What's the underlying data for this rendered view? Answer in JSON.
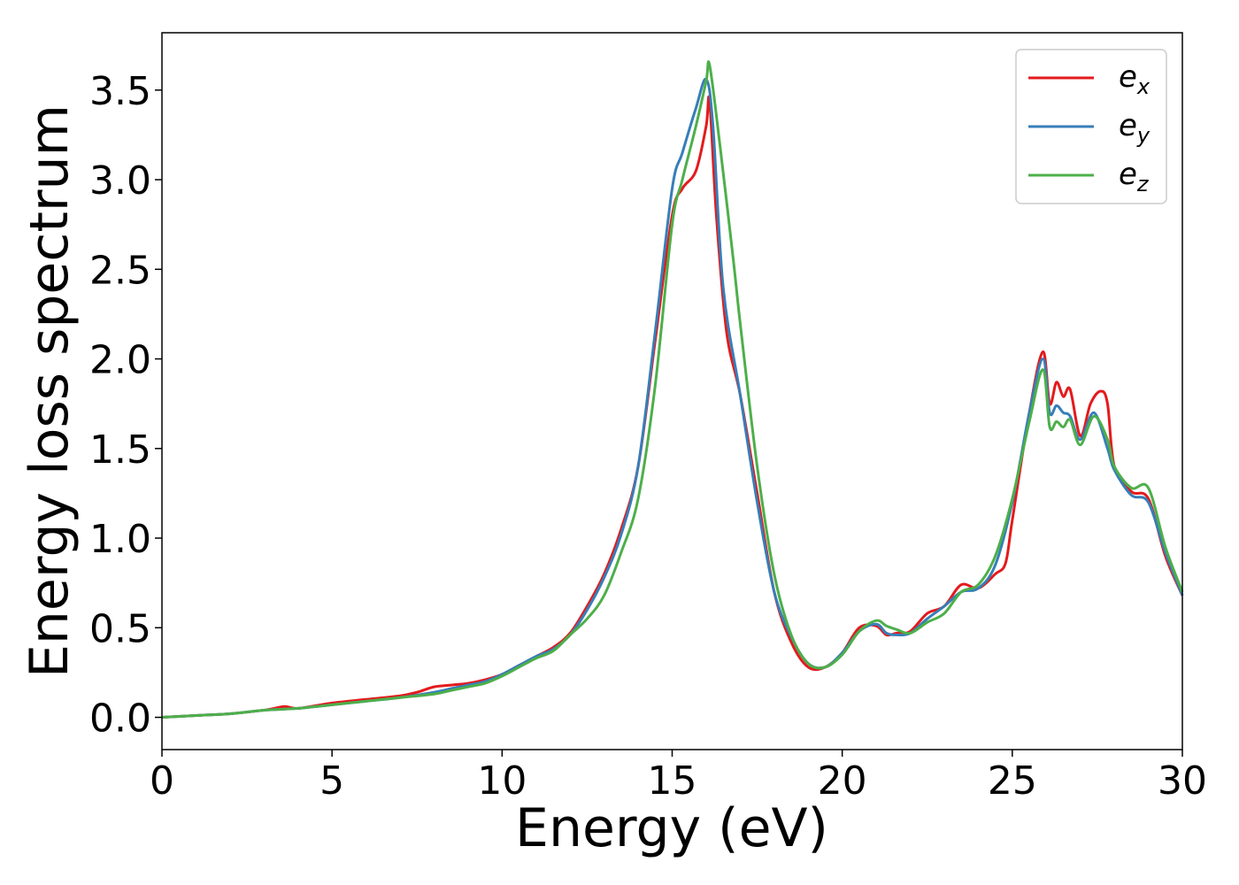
{
  "chart_data": {
    "type": "line",
    "xlabel": "Energy (eV)",
    "ylabel": "Energy loss spectrum",
    "xlim": [
      0,
      30
    ],
    "ylim": [
      -0.18,
      3.82
    ],
    "xticks": [
      0,
      5,
      10,
      15,
      20,
      25,
      30
    ],
    "xtick_labels": [
      "0",
      "5",
      "10",
      "15",
      "20",
      "25",
      "30"
    ],
    "yticks": [
      0.0,
      0.5,
      1.0,
      1.5,
      2.0,
      2.5,
      3.0,
      3.5
    ],
    "ytick_labels": [
      "0.0",
      "0.5",
      "1.0",
      "1.5",
      "2.0",
      "2.5",
      "3.0",
      "3.5"
    ],
    "grid": false,
    "legend_position": "top-right",
    "series": [
      {
        "name": "e_x",
        "label_base": "e",
        "label_sub": "x",
        "color": "#e41a1c",
        "x": [
          0,
          1,
          2,
          3,
          3.6,
          4,
          5,
          6,
          7,
          7.5,
          8,
          8.5,
          9,
          9.5,
          10,
          10.5,
          11,
          11.5,
          12,
          12.5,
          13,
          13.5,
          14,
          14.5,
          15,
          15.3,
          15.7,
          16.0,
          16.1,
          16.3,
          16.6,
          17,
          17.5,
          18,
          18.5,
          19,
          19.5,
          20,
          20.5,
          21,
          21.3,
          21.6,
          22,
          22.5,
          23,
          23.5,
          24,
          24.5,
          24.8,
          25,
          25.5,
          25.9,
          26.1,
          26.3,
          26.5,
          26.7,
          27,
          27.3,
          27.6,
          27.8,
          28,
          28.5,
          29,
          29.5,
          30
        ],
        "y": [
          0.0,
          0.01,
          0.02,
          0.04,
          0.06,
          0.05,
          0.08,
          0.1,
          0.12,
          0.14,
          0.17,
          0.18,
          0.19,
          0.21,
          0.24,
          0.29,
          0.34,
          0.39,
          0.47,
          0.62,
          0.8,
          1.05,
          1.4,
          2.1,
          2.8,
          2.95,
          3.05,
          3.3,
          3.44,
          2.8,
          2.15,
          1.8,
          1.25,
          0.7,
          0.42,
          0.28,
          0.28,
          0.36,
          0.5,
          0.51,
          0.46,
          0.47,
          0.48,
          0.58,
          0.62,
          0.74,
          0.72,
          0.8,
          0.86,
          1.1,
          1.7,
          2.04,
          1.75,
          1.87,
          1.79,
          1.83,
          1.57,
          1.75,
          1.82,
          1.75,
          1.4,
          1.26,
          1.22,
          0.9,
          0.68
        ]
      },
      {
        "name": "e_y",
        "label_base": "e",
        "label_sub": "y",
        "color": "#377eb8",
        "x": [
          0,
          1,
          2,
          3,
          4,
          5,
          6,
          7,
          8,
          8.5,
          9,
          9.5,
          10,
          10.5,
          11,
          11.5,
          12,
          12.5,
          13,
          13.5,
          14,
          14.5,
          15,
          15.3,
          15.7,
          16.0,
          16.2,
          16.5,
          17,
          17.5,
          18,
          18.5,
          19,
          19.5,
          20,
          20.5,
          21,
          21.3,
          21.6,
          22,
          22.5,
          23,
          23.5,
          24,
          24.5,
          25,
          25.5,
          25.9,
          26.1,
          26.3,
          26.5,
          26.7,
          27,
          27.4,
          27.8,
          28,
          28.5,
          29,
          29.5,
          30
        ],
        "y": [
          0.0,
          0.01,
          0.02,
          0.04,
          0.05,
          0.07,
          0.09,
          0.11,
          0.14,
          0.16,
          0.18,
          0.2,
          0.24,
          0.29,
          0.34,
          0.38,
          0.46,
          0.6,
          0.78,
          1.02,
          1.4,
          2.15,
          2.95,
          3.15,
          3.4,
          3.56,
          3.3,
          2.4,
          1.8,
          1.2,
          0.7,
          0.45,
          0.3,
          0.28,
          0.36,
          0.48,
          0.52,
          0.47,
          0.46,
          0.47,
          0.55,
          0.62,
          0.7,
          0.72,
          0.85,
          1.2,
          1.7,
          2.0,
          1.7,
          1.74,
          1.7,
          1.68,
          1.55,
          1.7,
          1.5,
          1.38,
          1.24,
          1.2,
          0.92,
          0.68
        ]
      },
      {
        "name": "e_z",
        "label_base": "e",
        "label_sub": "z",
        "color": "#4daf4a",
        "x": [
          0,
          1,
          2,
          3,
          4,
          5,
          6,
          7,
          8,
          8.5,
          9,
          9.5,
          10,
          10.5,
          11,
          11.5,
          12,
          12.5,
          13,
          13.5,
          14,
          14.5,
          15,
          15.3,
          15.7,
          16.0,
          16.1,
          16.4,
          16.8,
          17,
          17.5,
          18,
          18.5,
          19,
          19.5,
          20,
          20.5,
          21,
          21.3,
          21.6,
          22,
          22.5,
          23,
          23.5,
          24,
          24.5,
          25,
          25.5,
          25.9,
          26.1,
          26.3,
          26.5,
          26.7,
          27,
          27.4,
          27.8,
          28,
          28.5,
          29,
          29.5,
          30
        ],
        "y": [
          0.0,
          0.01,
          0.02,
          0.04,
          0.05,
          0.07,
          0.09,
          0.11,
          0.13,
          0.15,
          0.17,
          0.19,
          0.23,
          0.28,
          0.33,
          0.37,
          0.46,
          0.55,
          0.68,
          0.92,
          1.22,
          1.85,
          2.75,
          3.0,
          3.3,
          3.55,
          3.64,
          3.2,
          2.55,
          2.2,
          1.4,
          0.8,
          0.46,
          0.3,
          0.28,
          0.35,
          0.48,
          0.54,
          0.51,
          0.49,
          0.47,
          0.53,
          0.58,
          0.7,
          0.74,
          0.9,
          1.22,
          1.65,
          1.94,
          1.62,
          1.65,
          1.62,
          1.66,
          1.52,
          1.68,
          1.55,
          1.4,
          1.28,
          1.28,
          0.95,
          0.7
        ]
      }
    ]
  }
}
